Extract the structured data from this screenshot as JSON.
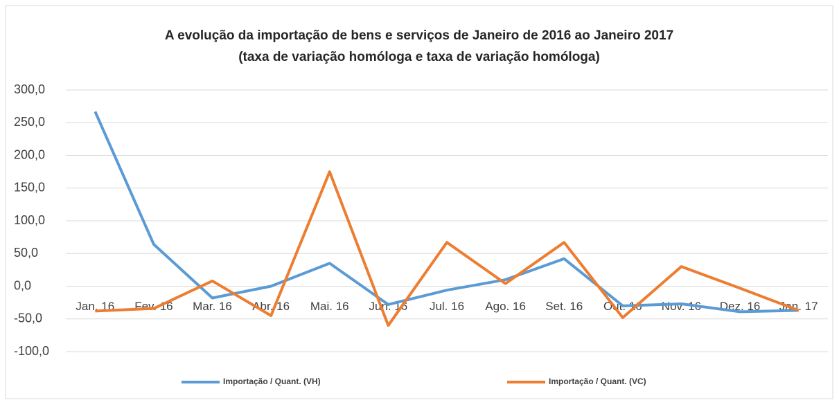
{
  "chart_data": {
    "type": "line",
    "title": "A evolução da importação de bens e serviços de Janeiro de 2016 ao Janeiro 2017",
    "subtitle": "(taxa de variação homóloga e taxa de variação homóloga)",
    "categories": [
      "Jan. 16",
      "Fev. 16",
      "Mar. 16",
      "Abr. 16",
      "Mai. 16",
      "Jun. 16",
      "Jul. 16",
      "Ago. 16",
      "Set. 16",
      "Out. 16",
      "Nov. 16",
      "Dez. 16",
      "Jan. 17"
    ],
    "series": [
      {
        "name": "Importação / Quant. (VH)",
        "color": "#5b9bd5",
        "values": [
          267,
          64,
          -18,
          0,
          35,
          -28,
          -6,
          10,
          42,
          -30,
          -27,
          -39,
          -37
        ]
      },
      {
        "name": "Importação / Quant. (VC)",
        "color": "#ed7d31",
        "values": [
          -38,
          -34,
          8,
          -45,
          175,
          -60,
          67,
          4,
          67,
          -48,
          30,
          -3,
          -37
        ]
      }
    ],
    "ylim": [
      -100,
      300
    ],
    "yticks": [
      {
        "value": -100,
        "label": "-100,0"
      },
      {
        "value": -50,
        "label": "-50,0"
      },
      {
        "value": 0,
        "label": "0,0"
      },
      {
        "value": 50,
        "label": "50,0"
      },
      {
        "value": 100,
        "label": "100,0"
      },
      {
        "value": 150,
        "label": "150,0"
      },
      {
        "value": 200,
        "label": "200,0"
      },
      {
        "value": 250,
        "label": "250,0"
      },
      {
        "value": 300,
        "label": "300,0"
      }
    ],
    "grid": true,
    "legend": "bottom"
  }
}
